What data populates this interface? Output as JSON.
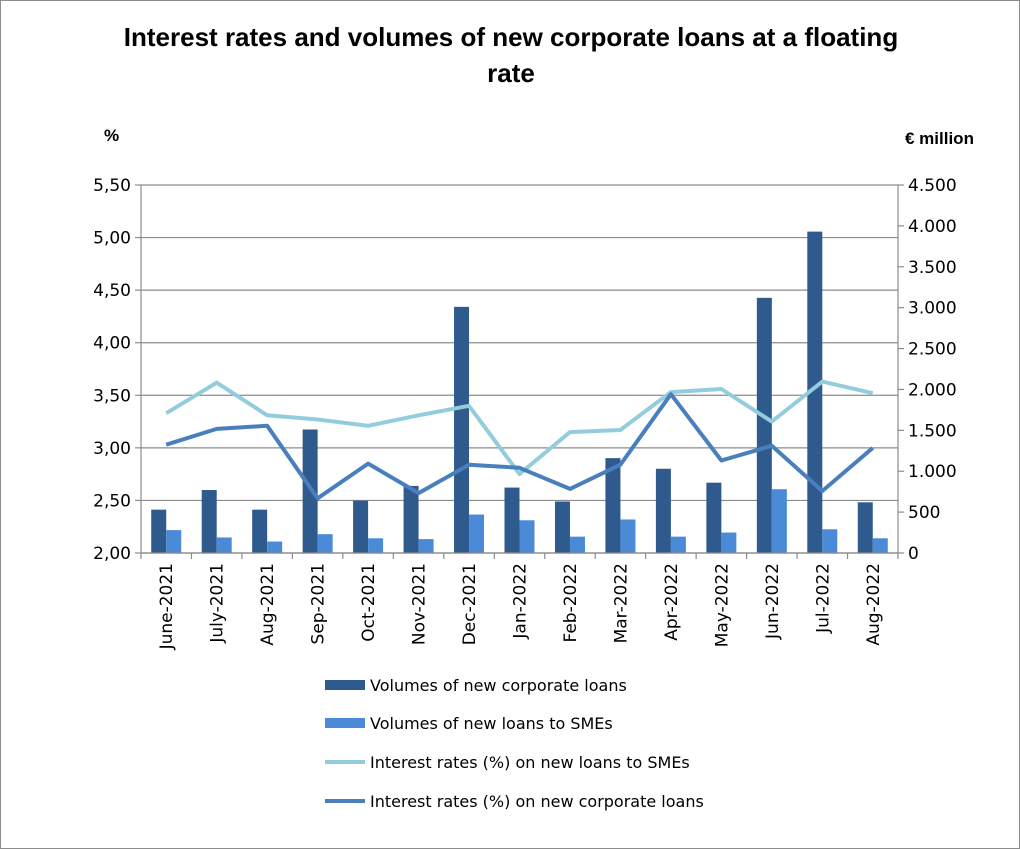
{
  "chart_data": {
    "type": "bar",
    "title": "Interest rates and volumes of new corporate loans at a floating rate",
    "left_axis_unit": "%",
    "right_axis_unit": "€ million",
    "categories": [
      "June-2021",
      "July-2021",
      "Aug-2021",
      "Sep-2021",
      "Oct-2021",
      "Nov-2021",
      "Dec-2021",
      "Jan-2022",
      "Feb-2022",
      "Mar-2022",
      "Apr-2022",
      "May-2022",
      "Jun-2022",
      "Jul-2022",
      "Aug-2022"
    ],
    "left_axis": {
      "ylim": [
        2.0,
        5.5
      ],
      "ticks": [
        2.0,
        2.5,
        3.0,
        3.5,
        4.0,
        4.5,
        5.0,
        5.5
      ],
      "tick_labels": [
        "2,00",
        "2,50",
        "3,00",
        "3,50",
        "4,00",
        "4,50",
        "5,00",
        "5,50"
      ]
    },
    "right_axis": {
      "ylim": [
        0,
        4500
      ],
      "ticks": [
        0,
        500,
        1000,
        1500,
        2000,
        2500,
        3000,
        3500,
        4000,
        4500
      ],
      "tick_labels": [
        "0",
        "500",
        "1.000",
        "1.500",
        "2.000",
        "2.500",
        "3.000",
        "3.500",
        "4.000",
        "4.500"
      ]
    },
    "grid": true,
    "legend_position": "bottom",
    "series": [
      {
        "name": "Volumes of new corporate loans",
        "kind": "bar",
        "axis": "right",
        "color": "#2f5a8e",
        "values": [
          530,
          770,
          530,
          1510,
          640,
          820,
          3010,
          800,
          630,
          1160,
          1030,
          860,
          3120,
          3930,
          620
        ]
      },
      {
        "name": "Volumes of new loans to SMEs",
        "kind": "bar",
        "axis": "right",
        "color": "#4a8ad6",
        "values": [
          280,
          190,
          140,
          230,
          180,
          170,
          470,
          400,
          200,
          410,
          200,
          250,
          780,
          290,
          180
        ]
      },
      {
        "name": "Interest rates (%) on new loans to SMEs",
        "kind": "line",
        "axis": "left",
        "color": "#93cddd",
        "values": [
          3.33,
          3.62,
          3.31,
          3.27,
          3.21,
          3.31,
          3.4,
          2.75,
          3.15,
          3.17,
          3.53,
          3.56,
          3.25,
          3.63,
          3.52
        ]
      },
      {
        "name": "Interest rates (%) on new corporate loans",
        "kind": "line",
        "axis": "left",
        "color": "#4a7fbd",
        "values": [
          3.03,
          3.18,
          3.21,
          2.52,
          2.85,
          2.57,
          2.84,
          2.81,
          2.61,
          2.84,
          3.51,
          2.88,
          3.02,
          2.59,
          3.0
        ]
      }
    ]
  }
}
